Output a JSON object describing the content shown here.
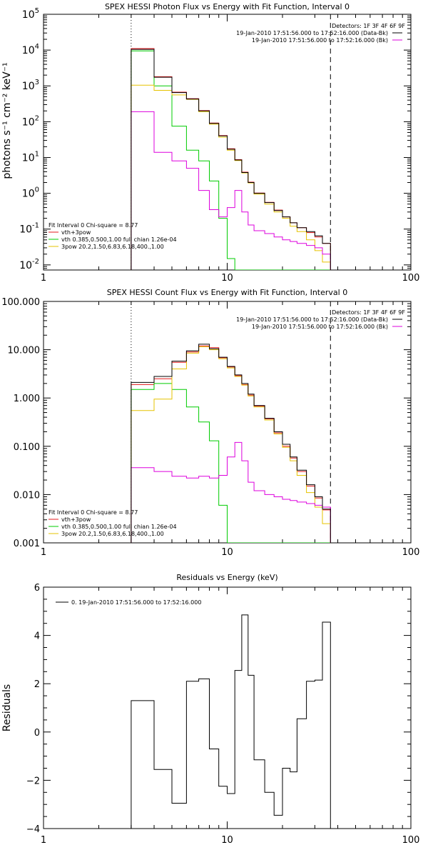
{
  "chart_data": [
    {
      "type": "line",
      "title": "SPEX HESSI Photon Flux vs Energy with Fit Function, Interval 0",
      "ylabel": "photons s⁻¹ cm⁻² keV⁻¹",
      "xlabel": "",
      "x_scale": "log",
      "y_scale": "log",
      "xlim": [
        1,
        100
      ],
      "ylim": [
        0.0072,
        100000
      ],
      "x_ticks": [
        {
          "v": 1,
          "label": "1"
        },
        {
          "v": 10,
          "label": "10"
        },
        {
          "v": 100,
          "label": "100"
        }
      ],
      "y_ticks": [
        {
          "v": 0.01,
          "label": "10",
          "exp": "-2"
        },
        {
          "v": 0.1,
          "label": "10",
          "exp": "-1"
        },
        {
          "v": 1,
          "label": "10",
          "exp": "0"
        },
        {
          "v": 10,
          "label": "10",
          "exp": "1"
        },
        {
          "v": 100,
          "label": "10",
          "exp": "2"
        },
        {
          "v": 1000,
          "label": "10",
          "exp": "3"
        },
        {
          "v": 10000,
          "label": "10",
          "exp": "4"
        },
        {
          "v": 100000,
          "label": "10",
          "exp": "5"
        }
      ],
      "fit_range": [
        3.0,
        36.5
      ],
      "edges": [
        3.0,
        4.0,
        5.0,
        6.0,
        7.0,
        8.0,
        9.0,
        10.0,
        11.0,
        12.0,
        13.0,
        14.0,
        16.0,
        18.0,
        20.0,
        22.0,
        24.0,
        27.0,
        30.0,
        33.0,
        36.5
      ],
      "series": [
        {
          "name": "",
          "color": "#000000",
          "values": [
            10500,
            1750,
            650,
            430,
            200,
            90,
            40,
            17,
            8.5,
            3.8,
            2.0,
            1.0,
            0.55,
            0.33,
            0.22,
            0.15,
            0.11,
            0.085,
            0.065,
            0.04
          ]
        },
        {
          "name": "vth+3pow",
          "color": "#e41a1c",
          "values": [
            11000,
            1800,
            670,
            440,
            205,
            92,
            41,
            17.5,
            8.7,
            3.9,
            2.05,
            1.02,
            0.56,
            0.34,
            0.22,
            0.15,
            0.11,
            0.08,
            0.06,
            0.04
          ]
        },
        {
          "name": "vth 0.385,0.500,1.00  full chian 1.26e-04",
          "color": "#00cc00",
          "values": [
            9500,
            1000,
            75,
            16,
            8.0,
            2.2,
            0.2,
            0.015,
            0.0072,
            0.0072,
            0.0072,
            0.0072,
            0.0072,
            0.0072,
            0.0072,
            0.0072,
            0.0072,
            0.0072,
            0.0072,
            0.0072
          ]
        },
        {
          "name": "3pow 20.2,1.50,6.83,6.18,400.,1.00",
          "color": "#e6c300",
          "values": [
            1050,
            750,
            560,
            420,
            190,
            85,
            37,
            16,
            8.2,
            3.7,
            1.95,
            0.95,
            0.5,
            0.3,
            0.2,
            0.12,
            0.085,
            0.05,
            0.025,
            0.012
          ]
        },
        {
          "name": "19-Jan-2010 17:51:56.000 to 17:52:16.000 (Bk)",
          "color": "#dd00dd",
          "values": [
            190,
            14,
            8.0,
            5.0,
            1.2,
            0.35,
            0.22,
            0.4,
            1.2,
            0.3,
            0.13,
            0.09,
            0.075,
            0.06,
            0.05,
            0.045,
            0.04,
            0.035,
            0.03,
            0.02
          ]
        }
      ],
      "legend": {
        "detectors": "Detectors: 1F 3F 4F 6F 9F",
        "data_entries": [
          {
            "text": "19-Jan-2010 17:51:56.000 to 17:52:16.000 (Data-Bk)",
            "color": "#000000"
          },
          {
            "text": "19-Jan-2010 17:51:56.000 to 17:52:16.000 (Bk)",
            "color": "#dd00dd"
          }
        ],
        "fit_header": "Fit Interval 0   Chi-square = 8.77",
        "fit_entries": [
          {
            "text": "vth+3pow",
            "color": "#e41a1c"
          },
          {
            "text": "vth 0.385,0.500,1.00  full chian 1.26e-04",
            "color": "#00cc00"
          },
          {
            "text": "3pow 20.2,1.50,6.83,6.18,400.,1.00",
            "color": "#e6c300"
          }
        ]
      }
    },
    {
      "type": "line",
      "title": "SPEX HESSI Count Flux vs Energy with Fit Function, Interval 0",
      "ylabel": "",
      "xlabel": "",
      "x_scale": "log",
      "y_scale": "log",
      "xlim": [
        1,
        100
      ],
      "ylim": [
        0.001,
        100
      ],
      "x_ticks": [
        {
          "v": 1,
          "label": "1"
        },
        {
          "v": 10,
          "label": "10"
        },
        {
          "v": 100,
          "label": "100"
        }
      ],
      "y_ticks": [
        {
          "v": 0.001,
          "label": "0.001"
        },
        {
          "v": 0.01,
          "label": "0.010"
        },
        {
          "v": 0.1,
          "label": "0.100"
        },
        {
          "v": 1,
          "label": "1.000"
        },
        {
          "v": 10,
          "label": "10.000"
        },
        {
          "v": 100,
          "label": "100.000"
        }
      ],
      "fit_range": [
        3.0,
        36.5
      ],
      "edges": [
        3.0,
        4.0,
        5.0,
        6.0,
        7.0,
        8.0,
        9.0,
        10.0,
        11.0,
        12.0,
        13.0,
        14.0,
        16.0,
        18.0,
        20.0,
        22.0,
        24.0,
        27.0,
        30.0,
        33.0,
        36.5
      ],
      "series": [
        {
          "name": "",
          "color": "#000000",
          "values": [
            2.1,
            2.8,
            5.8,
            9.5,
            13.0,
            10.5,
            7.0,
            4.5,
            3.0,
            2.0,
            1.2,
            0.7,
            0.38,
            0.2,
            0.11,
            0.06,
            0.032,
            0.016,
            0.009,
            0.005
          ]
        },
        {
          "name": "vth+3pow",
          "color": "#e41a1c",
          "values": [
            1.9,
            2.5,
            5.5,
            9.0,
            12.0,
            11.0,
            6.8,
            4.4,
            2.9,
            1.9,
            1.15,
            0.68,
            0.37,
            0.19,
            0.1,
            0.057,
            0.03,
            0.015,
            0.0085,
            0.0048
          ]
        },
        {
          "name": "vth 0.385,0.500,1.00  full chian 1.26e-04",
          "color": "#00cc00",
          "values": [
            1.5,
            2.0,
            1.5,
            0.65,
            0.32,
            0.13,
            0.006,
            0.001,
            0.001,
            0.001,
            0.001,
            0.001,
            0.001,
            0.001,
            0.001,
            0.001,
            0.001,
            0.001,
            0.001,
            0.001
          ]
        },
        {
          "name": "3pow 20.2,1.50,6.83,6.18,400.,1.00",
          "color": "#e6c300",
          "values": [
            0.55,
            0.95,
            4.0,
            8.5,
            11.5,
            10.0,
            6.5,
            4.2,
            2.8,
            1.85,
            1.1,
            0.65,
            0.35,
            0.18,
            0.095,
            0.05,
            0.025,
            0.011,
            0.0055,
            0.0025
          ]
        },
        {
          "name": "19-Jan-2010 17:51:56.000 to 17:52:16.000 (Bk)",
          "color": "#dd00dd",
          "values": [
            0.036,
            0.03,
            0.024,
            0.022,
            0.024,
            0.022,
            0.025,
            0.06,
            0.12,
            0.05,
            0.018,
            0.012,
            0.01,
            0.009,
            0.008,
            0.0075,
            0.007,
            0.0065,
            0.006,
            0.0055
          ]
        }
      ],
      "legend": {
        "detectors": "Detectors: 1F 3F 4F 6F 9F",
        "data_entries": [
          {
            "text": "19-Jan-2010 17:51:56.000 to 17:52:16.000 (Data-Bk)",
            "color": "#000000"
          },
          {
            "text": "19-Jan-2010 17:51:56.000 to 17:52:16.000 (Bk)",
            "color": "#dd00dd"
          }
        ],
        "fit_header": "Fit Interval 0   Chi-square = 8.77",
        "fit_entries": [
          {
            "text": "vth+3pow",
            "color": "#e41a1c"
          },
          {
            "text": "vth 0.385,0.500,1.00  full chian 1.26e-04",
            "color": "#00cc00"
          },
          {
            "text": "3pow 20.2,1.50,6.83,6.18,400.,1.00",
            "color": "#e6c300"
          }
        ]
      }
    },
    {
      "type": "line",
      "title": "Residuals vs Energy (keV)",
      "ylabel": "Residuals",
      "xlabel": "",
      "x_scale": "log",
      "y_scale": "linear",
      "xlim": [
        1,
        100
      ],
      "ylim": [
        -4,
        6
      ],
      "x_ticks": [
        {
          "v": 1,
          "label": "1"
        },
        {
          "v": 10,
          "label": "10"
        },
        {
          "v": 100,
          "label": "100"
        }
      ],
      "y_ticks": [
        {
          "v": -4,
          "label": "−4"
        },
        {
          "v": -2,
          "label": "−2"
        },
        {
          "v": 0,
          "label": "0"
        },
        {
          "v": 2,
          "label": "2"
        },
        {
          "v": 4,
          "label": "4"
        },
        {
          "v": 6,
          "label": "6"
        }
      ],
      "edges": [
        3.0,
        4.0,
        5.0,
        6.0,
        7.0,
        8.0,
        9.0,
        10.0,
        11.0,
        12.0,
        13.0,
        14.0,
        16.0,
        18.0,
        20.0,
        22.0,
        24.0,
        27.0,
        30.0,
        33.0,
        36.5
      ],
      "series": [
        {
          "name": "0. 19-Jan-2010 17:51:56.000 to 17:52:16.000",
          "color": "#000000",
          "values": [
            1.3,
            -1.55,
            -2.95,
            2.1,
            2.2,
            -0.7,
            -2.25,
            -2.55,
            2.55,
            4.85,
            2.35,
            -1.15,
            -2.5,
            -3.45,
            -1.5,
            -1.65,
            0.55,
            2.1,
            2.15,
            4.55
          ]
        }
      ],
      "legend": {
        "data_entries": [
          {
            "text": "0. 19-Jan-2010 17:51:56.000 to 17:52:16.000",
            "color": "#000000"
          }
        ]
      }
    }
  ]
}
